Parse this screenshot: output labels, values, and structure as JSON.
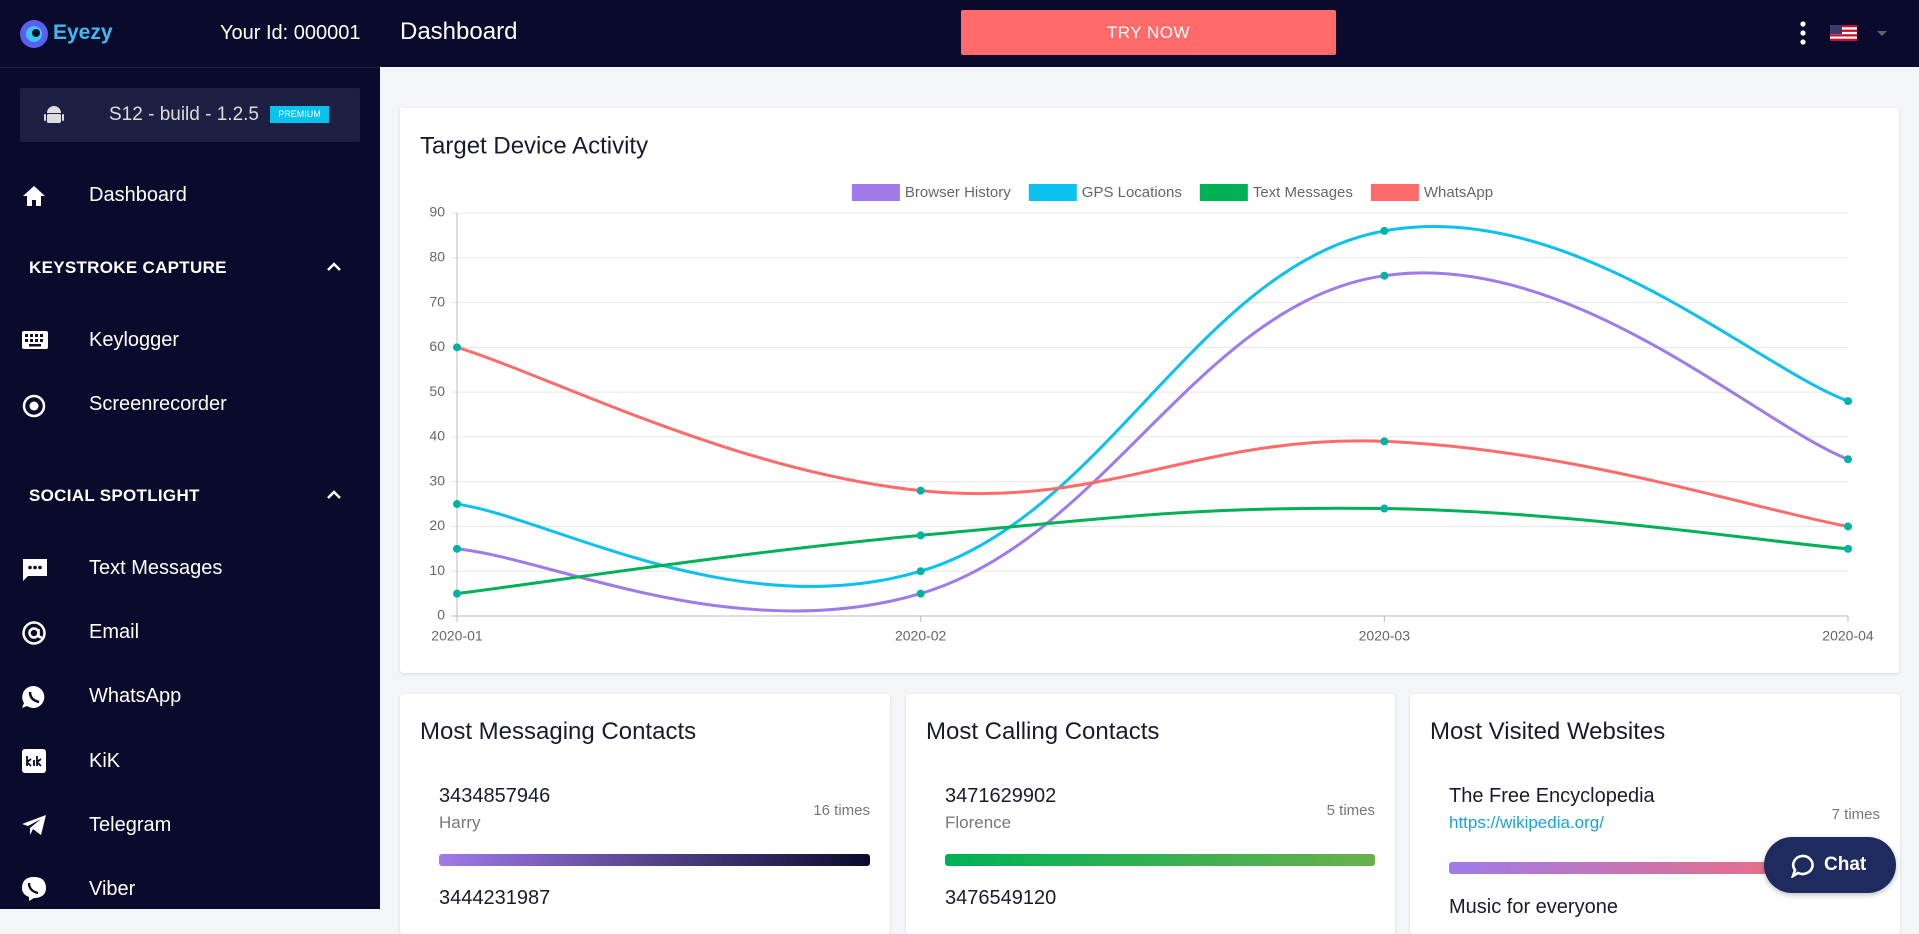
{
  "header": {
    "brand": "Eyezy",
    "user_id": "Your Id: 000001",
    "page_title": "Dashboard",
    "cta": "TRY NOW"
  },
  "sidebar": {
    "device": "S12 - build - 1.2.5",
    "badge": "PREMIUM",
    "dashboard": "Dashboard",
    "sections": [
      {
        "title": "KEYSTROKE CAPTURE",
        "items": [
          "Keylogger",
          "Screenrecorder"
        ]
      },
      {
        "title": "SOCIAL SPOTLIGHT",
        "items": [
          "Text Messages",
          "Email",
          "WhatsApp",
          "KiK",
          "Telegram",
          "Viber"
        ]
      }
    ]
  },
  "chart_data": {
    "type": "line",
    "title": "Target Device Activity",
    "categories": [
      "2020-01",
      "2020-02",
      "2020-03",
      "2020-04"
    ],
    "series": [
      {
        "name": "Browser History",
        "color": "#9f7aea",
        "values": [
          15,
          5,
          76,
          35
        ]
      },
      {
        "name": "GPS Locations",
        "color": "#0bc1ee",
        "values": [
          25,
          10,
          86,
          48
        ]
      },
      {
        "name": "Text Messages",
        "color": "#00b157",
        "values": [
          5,
          18,
          24,
          15
        ]
      },
      {
        "name": "WhatsApp",
        "color": "#ff6b6b",
        "values": [
          60,
          28,
          39,
          20
        ]
      }
    ],
    "point_color": "#00b3a4",
    "ylim": [
      0,
      90
    ],
    "yticks": [
      0,
      10,
      20,
      30,
      40,
      50,
      60,
      70,
      80,
      90
    ],
    "grid": true,
    "legend": "top"
  },
  "cards": [
    {
      "title": "Most Messaging Contacts",
      "entries": [
        {
          "primary": "3434857946",
          "secondary": "Harry",
          "count": "16 times"
        },
        {
          "primary": "3444231987"
        }
      ]
    },
    {
      "title": "Most Calling Contacts",
      "entries": [
        {
          "primary": "3471629902",
          "secondary": "Florence",
          "count": "5 times"
        },
        {
          "primary": "3476549120"
        }
      ]
    },
    {
      "title": "Most Visited Websites",
      "entries": [
        {
          "primary": "The Free Encyclopedia",
          "link": "https://wikipedia.org/",
          "count": "7 times"
        },
        {
          "primary": "Music for everyone"
        }
      ]
    }
  ],
  "chat": "Chat"
}
